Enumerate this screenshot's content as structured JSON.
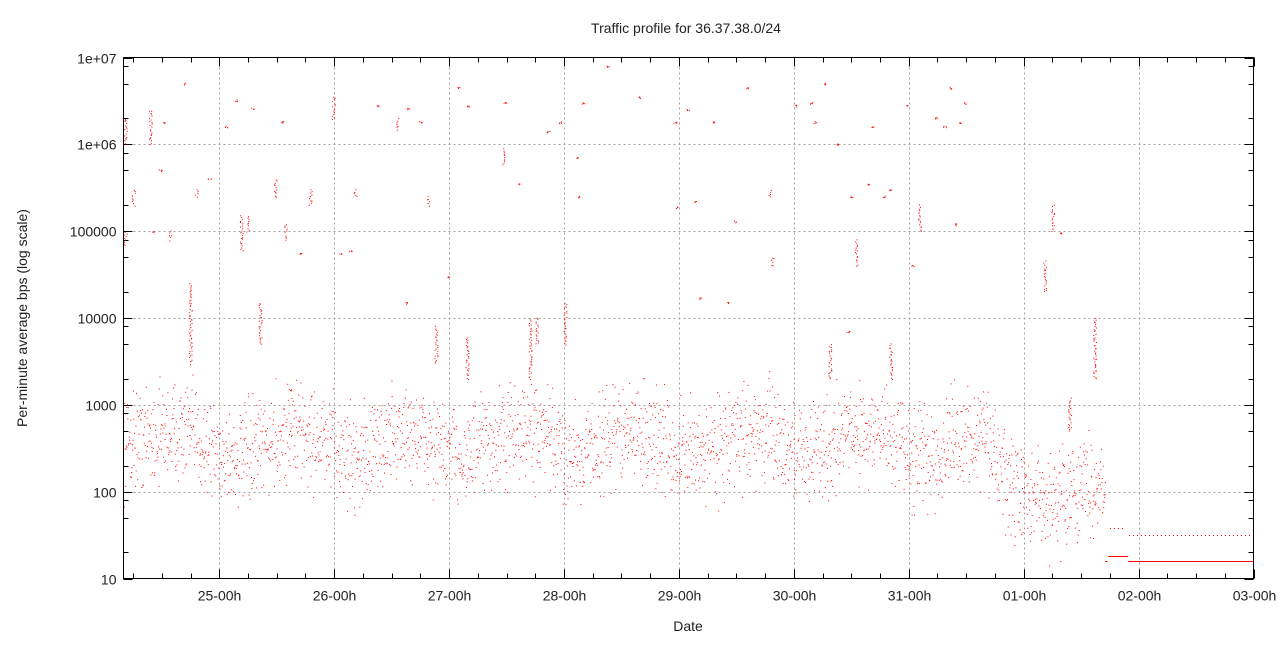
{
  "chart_data": {
    "type": "scatter",
    "title": "Traffic profile for 36.37.38.0/24",
    "xlabel": "Date",
    "ylabel": "Per-minute average bps (log scale)",
    "yscale": "log",
    "ylim": [
      10,
      10000000
    ],
    "xlim": [
      "24 04:00",
      "03 00:00"
    ],
    "grid": true,
    "color": "#ff0000",
    "y_ticks": [
      {
        "value": 10000000,
        "label": "1e+07"
      },
      {
        "value": 1000000,
        "label": "1e+06"
      },
      {
        "value": 100000,
        "label": "100000"
      },
      {
        "value": 10000,
        "label": "10000"
      },
      {
        "value": 1000,
        "label": "1000"
      },
      {
        "value": 100,
        "label": "100"
      },
      {
        "value": 10,
        "label": "10"
      }
    ],
    "x_ticks": [
      {
        "value": "25 00:00",
        "label": "25-00h"
      },
      {
        "value": "26 00:00",
        "label": "26-00h"
      },
      {
        "value": "27 00:00",
        "label": "27-00h"
      },
      {
        "value": "28 00:00",
        "label": "28-00h"
      },
      {
        "value": "29 00:00",
        "label": "29-00h"
      },
      {
        "value": "30 00:00",
        "label": "30-00h"
      },
      {
        "value": "31 00:00",
        "label": "31-00h"
      },
      {
        "value": "01 00:00",
        "label": "01-00h"
      },
      {
        "value": "02 00:00",
        "label": "02-00h"
      },
      {
        "value": "03 00:00",
        "label": "03-00h"
      }
    ],
    "baseline_bands": [
      [
        "24 04:00",
        400
      ],
      [
        "24 08:00",
        420
      ],
      [
        "24 12:00",
        480
      ],
      [
        "24 16:00",
        520
      ],
      [
        "24 20:00",
        380
      ],
      [
        "25 00:00",
        270
      ],
      [
        "25 04:00",
        240
      ],
      [
        "25 08:00",
        300
      ],
      [
        "25 12:00",
        420
      ],
      [
        "25 16:00",
        520
      ],
      [
        "25 20:00",
        400
      ],
      [
        "26 00:00",
        320
      ],
      [
        "26 04:00",
        250
      ],
      [
        "26 08:00",
        300
      ],
      [
        "26 12:00",
        450
      ],
      [
        "26 16:00",
        470
      ],
      [
        "26 20:00",
        380
      ],
      [
        "27 00:00",
        260
      ],
      [
        "27 04:00",
        270
      ],
      [
        "27 08:00",
        350
      ],
      [
        "27 12:00",
        420
      ],
      [
        "27 16:00",
        500
      ],
      [
        "27 20:00",
        420
      ],
      [
        "28 00:00",
        260
      ],
      [
        "28 04:00",
        300
      ],
      [
        "28 08:00",
        380
      ],
      [
        "28 12:00",
        470
      ],
      [
        "28 16:00",
        500
      ],
      [
        "28 20:00",
        380
      ],
      [
        "29 00:00",
        250
      ],
      [
        "29 04:00",
        280
      ],
      [
        "29 08:00",
        360
      ],
      [
        "29 12:00",
        420
      ],
      [
        "29 16:00",
        500
      ],
      [
        "29 20:00",
        420
      ],
      [
        "30 00:00",
        300
      ],
      [
        "30 04:00",
        280
      ],
      [
        "30 08:00",
        380
      ],
      [
        "30 12:00",
        500
      ],
      [
        "30 16:00",
        480
      ],
      [
        "30 20:00",
        420
      ],
      [
        "31 00:00",
        280
      ],
      [
        "31 04:00",
        250
      ],
      [
        "31 08:00",
        320
      ],
      [
        "31 12:00",
        420
      ],
      [
        "31 16:00",
        450
      ],
      [
        "31 20:00",
        130
      ],
      [
        "01 00:00",
        90
      ],
      [
        "01 04:00",
        75
      ],
      [
        "01 08:00",
        90
      ],
      [
        "01 12:00",
        120
      ],
      [
        "01 15:00",
        130
      ],
      [
        "01 17:00",
        130
      ]
    ],
    "bursts": [
      [
        "24 04:23",
        1000000,
        2000000
      ],
      [
        "24 04:23",
        70000,
        100000
      ],
      [
        "24 06:03",
        200000,
        300000
      ],
      [
        "24 09:36",
        1000000,
        2500000
      ],
      [
        "24 10:01",
        100000,
        100000
      ],
      [
        "24 11:41",
        500000,
        500000
      ],
      [
        "24 12:19",
        1800000,
        1800000
      ],
      [
        "24 13:46",
        80000,
        100000
      ],
      [
        "24 16:29",
        5000000,
        5000000
      ],
      [
        "24 17:57",
        3000,
        25000
      ],
      [
        "24 19:12",
        250000,
        300000
      ],
      [
        "24 21:55",
        400000,
        400000
      ],
      [
        "25 01:28",
        1600000,
        1600000
      ],
      [
        "25 03:33",
        3200000,
        3200000
      ],
      [
        "25 04:35",
        60000,
        150000
      ],
      [
        "25 05:51",
        100000,
        150000
      ],
      [
        "25 06:53",
        2600000,
        2600000
      ],
      [
        "25 08:33",
        5000,
        15000
      ],
      [
        "25 11:41",
        250000,
        400000
      ],
      [
        "25 13:09",
        1800000,
        1800000
      ],
      [
        "25 13:46",
        80000,
        120000
      ],
      [
        "25 14:49",
        1500,
        1500
      ],
      [
        "25 16:54",
        55000,
        55000
      ],
      [
        "25 18:59",
        200000,
        300000
      ],
      [
        "25 23:48",
        2000000,
        3500000
      ],
      [
        "26 01:15",
        55000,
        55000
      ],
      [
        "26 03:20",
        60000,
        60000
      ],
      [
        "26 04:23",
        250000,
        300000
      ],
      [
        "26 09:11",
        2800000,
        2800000
      ],
      [
        "26 13:09",
        1500000,
        2000000
      ],
      [
        "26 15:02",
        15000,
        15000
      ],
      [
        "26 15:27",
        2600000,
        2600000
      ],
      [
        "26 17:57",
        1800000,
        1800000
      ],
      [
        "26 19:37",
        200000,
        250000
      ],
      [
        "26 21:17",
        3000,
        8000
      ],
      [
        "26 23:48",
        30000,
        30000
      ],
      [
        "27 01:53",
        4500000,
        4500000
      ],
      [
        "27 03:45",
        2000,
        6000
      ],
      [
        "27 03:58",
        2800000,
        2800000
      ],
      [
        "27 11:16",
        600000,
        900000
      ],
      [
        "27 11:41",
        3000000,
        3000000
      ],
      [
        "27 14:49",
        350000,
        350000
      ],
      [
        "27 16:54",
        2000,
        10000
      ],
      [
        "27 18:22",
        5000,
        10000
      ],
      [
        "27 20:40",
        1400000,
        1400000
      ],
      [
        "27 23:10",
        1800000,
        1800000
      ],
      [
        "28 00:13",
        5000,
        15000
      ],
      [
        "28 02:55",
        250000,
        250000
      ],
      [
        "28 02:55",
        700000,
        700000
      ],
      [
        "28 03:58",
        3000000,
        3000000
      ],
      [
        "28 09:11",
        8000000,
        8000000
      ],
      [
        "28 15:52",
        3500000,
        3500000
      ],
      [
        "28 23:10",
        1800000,
        1800000
      ],
      [
        "28 23:23",
        190000,
        190000
      ],
      [
        "29 01:53",
        2500000,
        2500000
      ],
      [
        "29 03:20",
        220000,
        220000
      ],
      [
        "29 04:23",
        17000,
        17000
      ],
      [
        "29 07:18",
        1800000,
        1800000
      ],
      [
        "29 10:14",
        15000,
        15000
      ],
      [
        "29 11:41",
        130000,
        130000
      ],
      [
        "29 14:24",
        4500000,
        4500000
      ],
      [
        "29 18:59",
        250000,
        300000
      ],
      [
        "29 19:25",
        40000,
        50000
      ],
      [
        "30 00:13",
        2800000,
        2800000
      ],
      [
        "30 03:33",
        3000000,
        3000000
      ],
      [
        "30 04:23",
        1800000,
        1800000
      ],
      [
        "30 06:28",
        5000000,
        5000000
      ],
      [
        "30 07:31",
        2000,
        5000
      ],
      [
        "30 09:11",
        1000000,
        1000000
      ],
      [
        "30 11:16",
        7000,
        7000
      ],
      [
        "30 12:07",
        250000,
        250000
      ],
      [
        "30 12:56",
        40000,
        80000
      ],
      [
        "30 15:27",
        350000,
        350000
      ],
      [
        "30 16:29",
        1600000,
        1600000
      ],
      [
        "30 18:47",
        250000,
        250000
      ],
      [
        "30 20:02",
        300000,
        300000
      ],
      [
        "30 20:15",
        2000,
        5000
      ],
      [
        "30 23:48",
        2800000,
        2800000
      ],
      [
        "31 00:50",
        40000,
        40000
      ],
      [
        "31 02:18",
        100000,
        200000
      ],
      [
        "31 05:38",
        2000000,
        2000000
      ],
      [
        "31 07:31",
        1600000,
        1600000
      ],
      [
        "31 08:46",
        4500000,
        4500000
      ],
      [
        "31 09:36",
        120000,
        120000
      ],
      [
        "31 10:39",
        1800000,
        1800000
      ],
      [
        "31 11:41",
        3000000,
        3000000
      ],
      [
        "01 04:23",
        20000,
        45000
      ],
      [
        "01 06:03",
        100000,
        200000
      ],
      [
        "01 07:31",
        95000,
        95000
      ],
      [
        "01 09:36",
        500,
        1200
      ],
      [
        "01 14:49",
        2000,
        10000
      ]
    ],
    "tail_lines": [
      {
        "from": "01 17:00",
        "to": "01 17:30",
        "value": 16
      },
      {
        "from": "01 17:40",
        "to": "01 21:50",
        "value": 18
      },
      {
        "from": "01 21:50",
        "to": "03 00:00",
        "value": 16
      }
    ],
    "tail_dotted": [
      {
        "from": "01 18:00",
        "to": "01 21:00",
        "value": 38
      },
      {
        "from": "01 22:00",
        "to": "02 23:30",
        "value": 32
      }
    ]
  }
}
